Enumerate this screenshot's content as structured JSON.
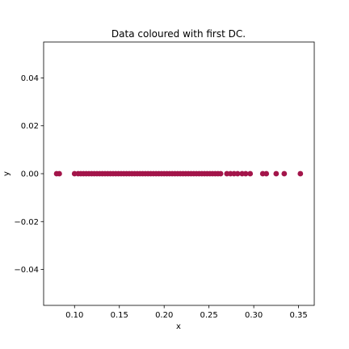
{
  "chart_data": {
    "type": "scatter",
    "title": "Data coloured with first DC.",
    "xlabel": "x",
    "ylabel": "y",
    "xlim": [
      0.0655,
      0.3675
    ],
    "ylim": [
      -0.055,
      0.055
    ],
    "xticks": [
      {
        "value": 0.1,
        "label": "0.10"
      },
      {
        "value": 0.15,
        "label": "0.15"
      },
      {
        "value": 0.2,
        "label": "0.20"
      },
      {
        "value": 0.25,
        "label": "0.25"
      },
      {
        "value": 0.3,
        "label": "0.30"
      },
      {
        "value": 0.35,
        "label": "0.35"
      }
    ],
    "yticks": [
      {
        "value": 0.04,
        "label": "0.04"
      },
      {
        "value": 0.02,
        "label": "0.02"
      },
      {
        "value": 0.0,
        "label": "0.00"
      },
      {
        "value": -0.02,
        "label": "−0.02"
      },
      {
        "value": -0.04,
        "label": "−0.04"
      }
    ],
    "grid": false,
    "marker_color": "#a3154a",
    "points": {
      "x": [
        0.08,
        0.083,
        0.1,
        0.104,
        0.107,
        0.11,
        0.113,
        0.116,
        0.119,
        0.122,
        0.125,
        0.128,
        0.131,
        0.134,
        0.137,
        0.14,
        0.143,
        0.146,
        0.149,
        0.152,
        0.155,
        0.158,
        0.161,
        0.164,
        0.167,
        0.17,
        0.173,
        0.176,
        0.179,
        0.182,
        0.185,
        0.188,
        0.191,
        0.194,
        0.197,
        0.2,
        0.203,
        0.206,
        0.209,
        0.212,
        0.215,
        0.218,
        0.221,
        0.224,
        0.227,
        0.23,
        0.233,
        0.236,
        0.239,
        0.242,
        0.245,
        0.248,
        0.251,
        0.254,
        0.257,
        0.26,
        0.263,
        0.27,
        0.274,
        0.278,
        0.282,
        0.287,
        0.291,
        0.296,
        0.31,
        0.314,
        0.325,
        0.334,
        0.352
      ],
      "y": [
        0,
        0,
        0,
        0,
        0,
        0,
        0,
        0,
        0,
        0,
        0,
        0,
        0,
        0,
        0,
        0,
        0,
        0,
        0,
        0,
        0,
        0,
        0,
        0,
        0,
        0,
        0,
        0,
        0,
        0,
        0,
        0,
        0,
        0,
        0,
        0,
        0,
        0,
        0,
        0,
        0,
        0,
        0,
        0,
        0,
        0,
        0,
        0,
        0,
        0,
        0,
        0,
        0,
        0,
        0,
        0,
        0,
        0,
        0,
        0,
        0,
        0,
        0,
        0,
        0,
        0,
        0,
        0,
        0
      ]
    }
  }
}
